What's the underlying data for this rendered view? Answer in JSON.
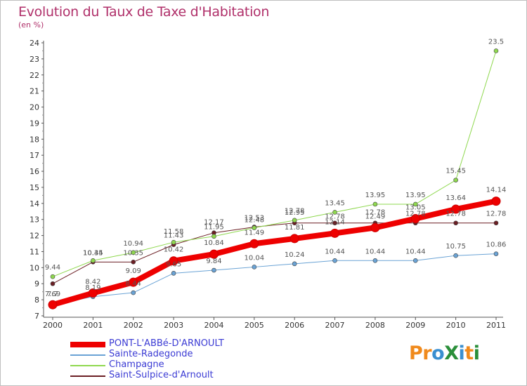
{
  "title": "Evolution du Taux de Taxe d'Habitation",
  "subtitle": "(en %)",
  "logo": {
    "text": "ProXiti",
    "colors": [
      "#f08a1c",
      "#f08a1c",
      "#3a8fd0",
      "#2a8f3a",
      "#3a8fd0",
      "#f08a1c",
      "#2a8f3a"
    ]
  },
  "chart_data": {
    "type": "line",
    "title": "Evolution du Taux de Taxe d'Habitation",
    "subtitle": "(en %)",
    "xlabel": "",
    "ylabel": "",
    "x": [
      2000,
      2001,
      2002,
      2003,
      2004,
      2005,
      2006,
      2007,
      2008,
      2009,
      2010,
      2011
    ],
    "x_tick_labels": [
      "2000",
      "2001",
      "2002",
      "2003",
      "2004",
      "2005",
      "2006",
      "2007",
      "2008",
      "2009",
      "2010",
      "2011"
    ],
    "ylim": [
      7,
      24
    ],
    "y_ticks": [
      7,
      8,
      9,
      10,
      11,
      12,
      13,
      14,
      15,
      16,
      17,
      18,
      19,
      20,
      21,
      22,
      23,
      24
    ],
    "y_tick_labels": [
      "7",
      "8",
      "9",
      "10",
      "11",
      "12",
      "13",
      "14",
      "15",
      "16",
      "17",
      "18",
      "19",
      "20",
      "21",
      "22",
      "23",
      "24"
    ],
    "grid": false,
    "legend_position": "bottom-left",
    "series": [
      {
        "name": "Saint-Sulpice-d'Arnoult",
        "color": "#6b1f24",
        "width": 1,
        "marker": 3,
        "values": [
          9.0,
          10.35,
          10.35,
          11.43,
          12.17,
          12.53,
          12.78,
          12.78,
          12.78,
          12.78,
          12.78,
          12.78
        ],
        "labels": [
          "",
          "10.35",
          "10.35",
          "11.43",
          "12.17",
          "12.53",
          "12.78",
          "12.78",
          "12.78",
          "12.78",
          "12.78",
          "12.78"
        ],
        "label_offsets": [
          0,
          -10,
          -10,
          -10,
          -12,
          -10,
          -14,
          -6,
          -12,
          -10,
          -10,
          -10
        ]
      },
      {
        "name": "Champagne",
        "color": "#8fd84f",
        "width": 1,
        "marker": 3,
        "values": [
          9.44,
          10.44,
          10.94,
          11.58,
          11.95,
          12.48,
          12.95,
          13.45,
          13.95,
          13.95,
          15.45,
          23.5
        ],
        "labels": [
          "9.44",
          "10.44",
          "10.94",
          "11.58",
          "11.95",
          "12.48",
          "12.95",
          "13.45",
          "13.95",
          "13.95",
          "15.45",
          "23.5"
        ],
        "label_offsets": [
          -10,
          -8,
          -10,
          -12,
          -10,
          -8,
          -8,
          -10,
          -10,
          -10,
          -10,
          -10
        ]
      },
      {
        "name": "Sainte-Radegonde",
        "color": "#6aa3d5",
        "width": 1,
        "marker": 3,
        "values": [
          7.7,
          8.19,
          8.44,
          9.65,
          9.84,
          10.04,
          10.24,
          10.44,
          10.44,
          10.44,
          10.75,
          10.86
        ],
        "labels": [
          "7.7",
          "8.19",
          "8.44",
          "9.65",
          "9.84",
          "10.04",
          "10.24",
          "10.44",
          "10.44",
          "10.44",
          "10.75",
          "10.86"
        ],
        "label_offsets": [
          -12,
          -10,
          -10,
          -10,
          -10,
          -10,
          -10,
          -10,
          -10,
          -10,
          -10,
          -10
        ]
      },
      {
        "name": "PONT-L'ABBé-D'ARNOULT",
        "color": "#ee0000",
        "width": 8,
        "marker": 6,
        "values": [
          7.69,
          8.42,
          9.09,
          10.42,
          10.84,
          11.49,
          11.81,
          12.14,
          12.49,
          13.05,
          13.64,
          14.14
        ],
        "labels": [
          "7.69",
          "8.42",
          "9.09",
          "10.42",
          "10.84",
          "11.49",
          "11.81",
          "12.14",
          "12.49",
          "13.05",
          "13.64",
          "14.14"
        ],
        "label_offsets": [
          -12,
          -13,
          -13,
          -13,
          -13,
          -13,
          -13,
          -13,
          -13,
          -13,
          -13,
          -13
        ]
      }
    ],
    "legend_order": [
      "PONT-L'ABBé-D'ARNOULT",
      "Sainte-Radegonde",
      "Champagne",
      "Saint-Sulpice-d'Arnoult"
    ]
  }
}
